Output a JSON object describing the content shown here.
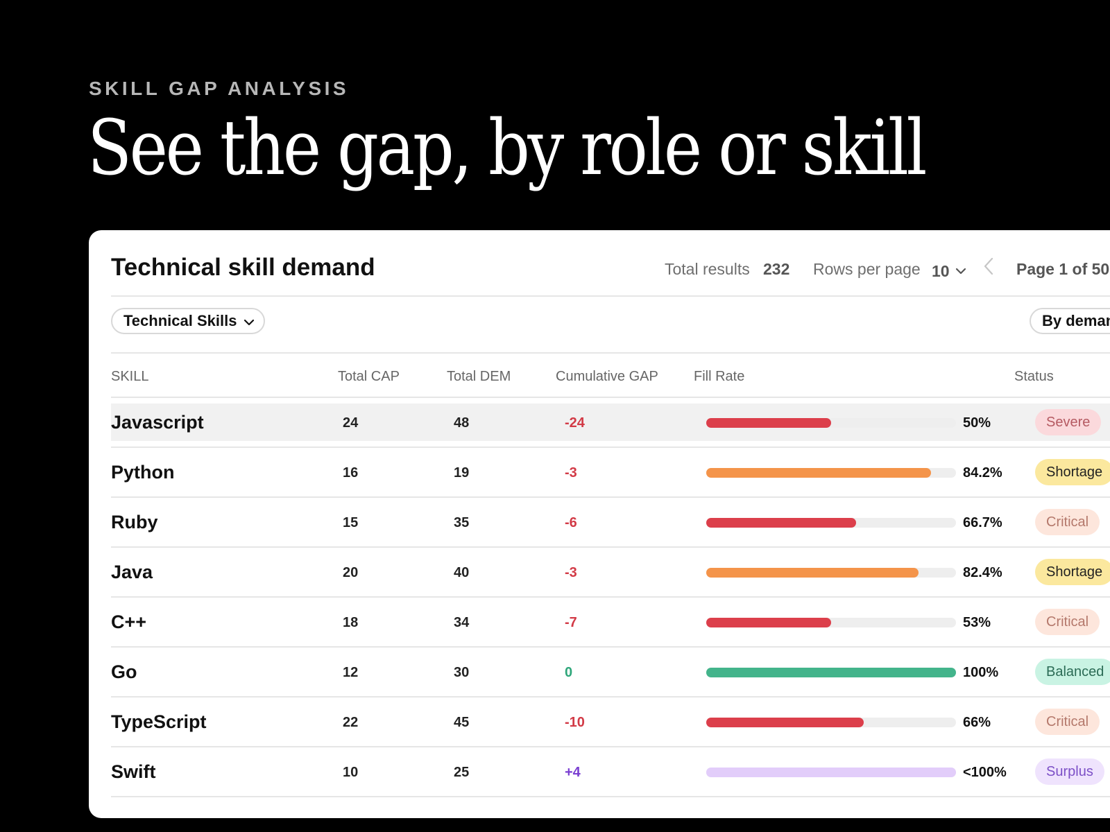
{
  "hero": {
    "eyebrow": "SKILL GAP ANALYSIS",
    "headline": "See the gap, by role or skill"
  },
  "card": {
    "title": "Technical skill demand",
    "total_results_label": "Total results",
    "total_results_value": "232",
    "rows_per_page_label": "Rows per page",
    "rows_per_page_value": "10",
    "page_indicator": "Page 1 of 50",
    "filter_label": "Technical Skills",
    "sort_label": "By deman"
  },
  "table": {
    "columns": [
      "SKILL",
      "Total CAP",
      "Total DEM",
      "Cumulative GAP",
      "Fill Rate",
      "Status"
    ],
    "rows": [
      {
        "skill": "Javascript",
        "cap": "24",
        "dem": "48",
        "gap": "-24",
        "fill": 0.5,
        "pct": "50%",
        "status": "Severe",
        "bar_color": "#dc3f4b",
        "gap_color": "#d23a46",
        "badge_bg": "#fbd9dc",
        "badge_fg": "#b55a62"
      },
      {
        "skill": "Python",
        "cap": "16",
        "dem": "19",
        "gap": "-3",
        "fill": 0.9,
        "pct": "84.2%",
        "status": "Shortage",
        "bar_color": "#f4944a",
        "gap_color": "#d23a46",
        "badge_bg": "#fbe89e",
        "badge_fg": "#222222"
      },
      {
        "skill": "Ruby",
        "cap": "15",
        "dem": "35",
        "gap": "-6",
        "fill": 0.6,
        "pct": "66.7%",
        "status": "Critical",
        "bar_color": "#dc3f4b",
        "gap_color": "#d23a46",
        "badge_bg": "#fde6dc",
        "badge_fg": "#b4786b"
      },
      {
        "skill": "Java",
        "cap": "20",
        "dem": "40",
        "gap": "-3",
        "fill": 0.85,
        "pct": "82.4%",
        "status": "Shortage",
        "bar_color": "#f4944a",
        "gap_color": "#d23a46",
        "badge_bg": "#fbe89e",
        "badge_fg": "#222222"
      },
      {
        "skill": "C++",
        "cap": "18",
        "dem": "34",
        "gap": "-7",
        "fill": 0.5,
        "pct": "53%",
        "status": "Critical",
        "bar_color": "#dc3f4b",
        "gap_color": "#d23a46",
        "badge_bg": "#fde6dc",
        "badge_fg": "#b4786b"
      },
      {
        "skill": "Go",
        "cap": "12",
        "dem": "30",
        "gap": "0",
        "fill": 1.0,
        "pct": "100%",
        "status": "Balanced",
        "bar_color": "#43b48b",
        "gap_color": "#2ea67a",
        "badge_bg": "#c9f3e3",
        "badge_fg": "#2b6b55"
      },
      {
        "skill": "TypeScript",
        "cap": "22",
        "dem": "45",
        "gap": "-10",
        "fill": 0.63,
        "pct": "66%",
        "status": "Critical",
        "bar_color": "#dc3f4b",
        "gap_color": "#d23a46",
        "badge_bg": "#fde6dc",
        "badge_fg": "#b4786b"
      },
      {
        "skill": "Swift",
        "cap": "10",
        "dem": "25",
        "gap": "+4",
        "fill": 1.0,
        "pct": "<100%",
        "status": "Surplus",
        "bar_color": "#e2cdfa",
        "gap_color": "#7a3fd1",
        "badge_bg": "#efe3fd",
        "badge_fg": "#7c4fc7"
      }
    ]
  },
  "icons": {
    "dropdown": "chevron-down-icon",
    "previous": "chevron-left-icon"
  }
}
